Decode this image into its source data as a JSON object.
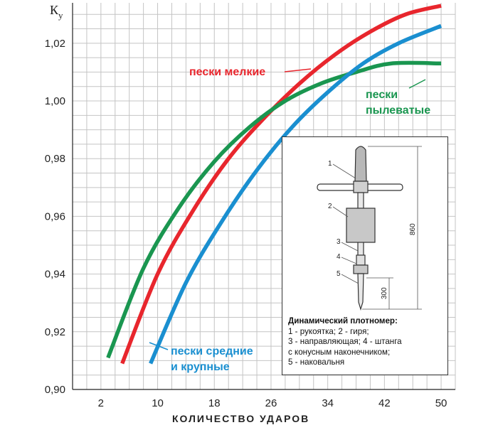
{
  "chart_data": {
    "type": "line",
    "title": "",
    "xlabel": "КОЛИЧЕСТВО УДАРОВ",
    "ylabel_main": "К",
    "ylabel_sub": "у",
    "xlim": [
      -2,
      52
    ],
    "ylim": [
      0.9,
      1.034
    ],
    "xticks": [
      2,
      10,
      18,
      26,
      34,
      42,
      50
    ],
    "yticks": [
      0.9,
      0.92,
      0.94,
      0.96,
      0.98,
      1.0,
      1.02
    ],
    "ytick_labels": [
      "0,90",
      "0,92",
      "0,94",
      "0,96",
      "0,98",
      "1,00",
      "1,02"
    ],
    "grid": true,
    "series": [
      {
        "name": "пески мелкие",
        "color": "#e8262d",
        "x": [
          5,
          10,
          15,
          20,
          25,
          30,
          35,
          40,
          45,
          50
        ],
        "y": [
          0.909,
          0.94,
          0.962,
          0.98,
          0.994,
          1.006,
          1.016,
          1.024,
          1.03,
          1.033
        ]
      },
      {
        "name": "пески пылеватые",
        "color": "#1a9650",
        "x": [
          3,
          8,
          13,
          18,
          23,
          28,
          33,
          38,
          43,
          50
        ],
        "y": [
          0.911,
          0.942,
          0.963,
          0.979,
          0.991,
          1.0,
          1.006,
          1.01,
          1.013,
          1.013
        ]
      },
      {
        "name": "пески средние и крупные",
        "color": "#1a8fd0",
        "x": [
          9,
          14,
          19,
          24,
          29,
          34,
          39,
          44,
          50
        ],
        "y": [
          0.909,
          0.937,
          0.958,
          0.976,
          0.991,
          1.003,
          1.013,
          1.02,
          1.026
        ]
      }
    ],
    "annotations": [
      {
        "text": "пески мелкие",
        "color": "#e8262d"
      },
      {
        "text_lines": [
          "пески",
          "пылеватые"
        ],
        "color": "#1a9650"
      },
      {
        "text_lines": [
          "пески средние",
          "и крупные"
        ],
        "color": "#1a8fd0"
      }
    ]
  },
  "inset": {
    "caption_title": "Динамический плотномер:",
    "caption_lines": [
      "1 - рукоятка; 2 - гиря;",
      "3 - направляющая; 4 - штанга",
      "с конусным наконечником;",
      "5 - наковальня"
    ],
    "part_numbers": [
      "1",
      "2",
      "3",
      "4",
      "5"
    ],
    "dimension_total": "860",
    "dimension_bottom": "300"
  }
}
